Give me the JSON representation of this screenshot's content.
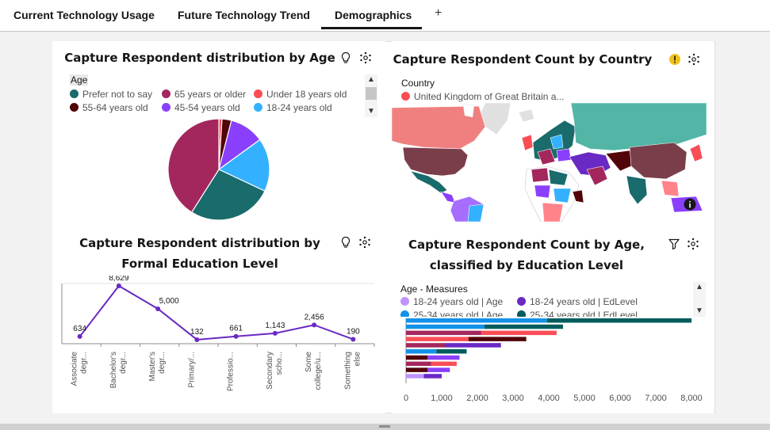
{
  "tabs": [
    {
      "label": "Current Technology Usage"
    },
    {
      "label": "Future Technology Trend"
    },
    {
      "label": "Demographics",
      "active": true
    }
  ],
  "add_tab_label": "+",
  "panels": {
    "age": {
      "title": "Capture Respondent distribution by Age",
      "legend_title": "Age",
      "legend": [
        {
          "label": "Prefer not to say",
          "color": "#1a6b6b"
        },
        {
          "label": "65 years or older",
          "color": "#a3275d"
        },
        {
          "label": "Under 18 years old",
          "color": "#fa4d56"
        },
        {
          "label": "55-64 years old",
          "color": "#520408"
        },
        {
          "label": "45-54 years old",
          "color": "#8a3ffc"
        },
        {
          "label": "18-24 years old",
          "color": "#33b1ff"
        }
      ]
    },
    "country": {
      "title": "Capture Respondent Count by Country",
      "legend_title": "Country",
      "legend": [
        {
          "label": "United Kingdom of Great Britain a...",
          "color": "#fa4d56"
        }
      ]
    },
    "education": {
      "title_line1": "Capture Respondent distribution by",
      "title_line2": "Formal Education Level"
    },
    "age_edu": {
      "title_line1": "Capture Respondent Count by Age,",
      "title_line2": "classified by Education Level",
      "legend_title": "Age - Measures",
      "legend": [
        {
          "label": "18-24 years old | Age",
          "color": "#be95ff"
        },
        {
          "label": "18-24 years old | EdLevel",
          "color": "#6929c4"
        },
        {
          "label": "25-34 years old | Age",
          "color": "#1192e8"
        },
        {
          "label": "25-34 years old | EdLevel",
          "color": "#005d5d"
        }
      ]
    }
  },
  "chart_data": [
    {
      "type": "pie",
      "title": "Capture Respondent distribution by Age",
      "categories": [
        "Under 18 years old",
        "55-64 years old",
        "45-54 years old",
        "18-24 years old",
        "Prefer not to say",
        "65 years or older"
      ],
      "values": [
        1,
        3,
        11,
        17,
        27,
        41
      ],
      "colors": [
        "#fa4d56",
        "#520408",
        "#8a3ffc",
        "#33b1ff",
        "#1a6b6b",
        "#a3275d"
      ]
    },
    {
      "type": "line",
      "title": "Capture Respondent distribution by Formal Education Level",
      "categories": [
        "Associate degr...",
        "Bachelor's degr...",
        "Master's degr...",
        "Primary/...",
        "Professio...",
        "Secondary scho...",
        "Some college/u...",
        "Something else"
      ],
      "values": [
        634,
        8629,
        5000,
        132,
        661,
        1143,
        2456,
        190
      ],
      "value_labels": [
        "634",
        "8,629",
        "5,000",
        "132",
        "661",
        "1,143",
        "2,456",
        "190"
      ],
      "color": "#6929c4"
    },
    {
      "type": "bar",
      "title": "Capture Respondent Count by Age, classified by Education Level",
      "x_ticks": [
        "0",
        "1,000",
        "2,000",
        "3,000",
        "4,000",
        "5,000",
        "6,000",
        "7,000",
        "8,000"
      ],
      "xlim": [
        0,
        8000
      ],
      "bars": [
        {
          "segments": [
            {
              "value": 3950,
              "color": "#1192e8"
            },
            {
              "value": 4050,
              "color": "#005d5d"
            }
          ]
        },
        {
          "segments": [
            {
              "value": 2200,
              "color": "#1192e8"
            },
            {
              "value": 2200,
              "color": "#005d5d"
            }
          ]
        },
        {
          "segments": [
            {
              "value": 2100,
              "color": "#a3275d"
            },
            {
              "value": 2120,
              "color": "#fa4d56"
            }
          ]
        },
        {
          "segments": [
            {
              "value": 1750,
              "color": "#fa4d56"
            },
            {
              "value": 1620,
              "color": "#520408"
            }
          ]
        },
        {
          "segments": [
            {
              "value": 1100,
              "color": "#a3275d"
            },
            {
              "value": 1560,
              "color": "#6929c4"
            }
          ]
        },
        {
          "segments": [
            {
              "value": 850,
              "color": "#1192e8"
            },
            {
              "value": 850,
              "color": "#005d5d"
            }
          ]
        },
        {
          "segments": [
            {
              "value": 600,
              "color": "#520408"
            },
            {
              "value": 900,
              "color": "#8a3ffc"
            }
          ]
        },
        {
          "segments": [
            {
              "value": 700,
              "color": "#a3275d"
            },
            {
              "value": 720,
              "color": "#fa4d56"
            }
          ]
        },
        {
          "segments": [
            {
              "value": 600,
              "color": "#520408"
            },
            {
              "value": 630,
              "color": "#8a3ffc"
            }
          ]
        },
        {
          "segments": [
            {
              "value": 500,
              "color": "#be95ff"
            },
            {
              "value": 500,
              "color": "#6929c4"
            }
          ]
        }
      ]
    }
  ]
}
